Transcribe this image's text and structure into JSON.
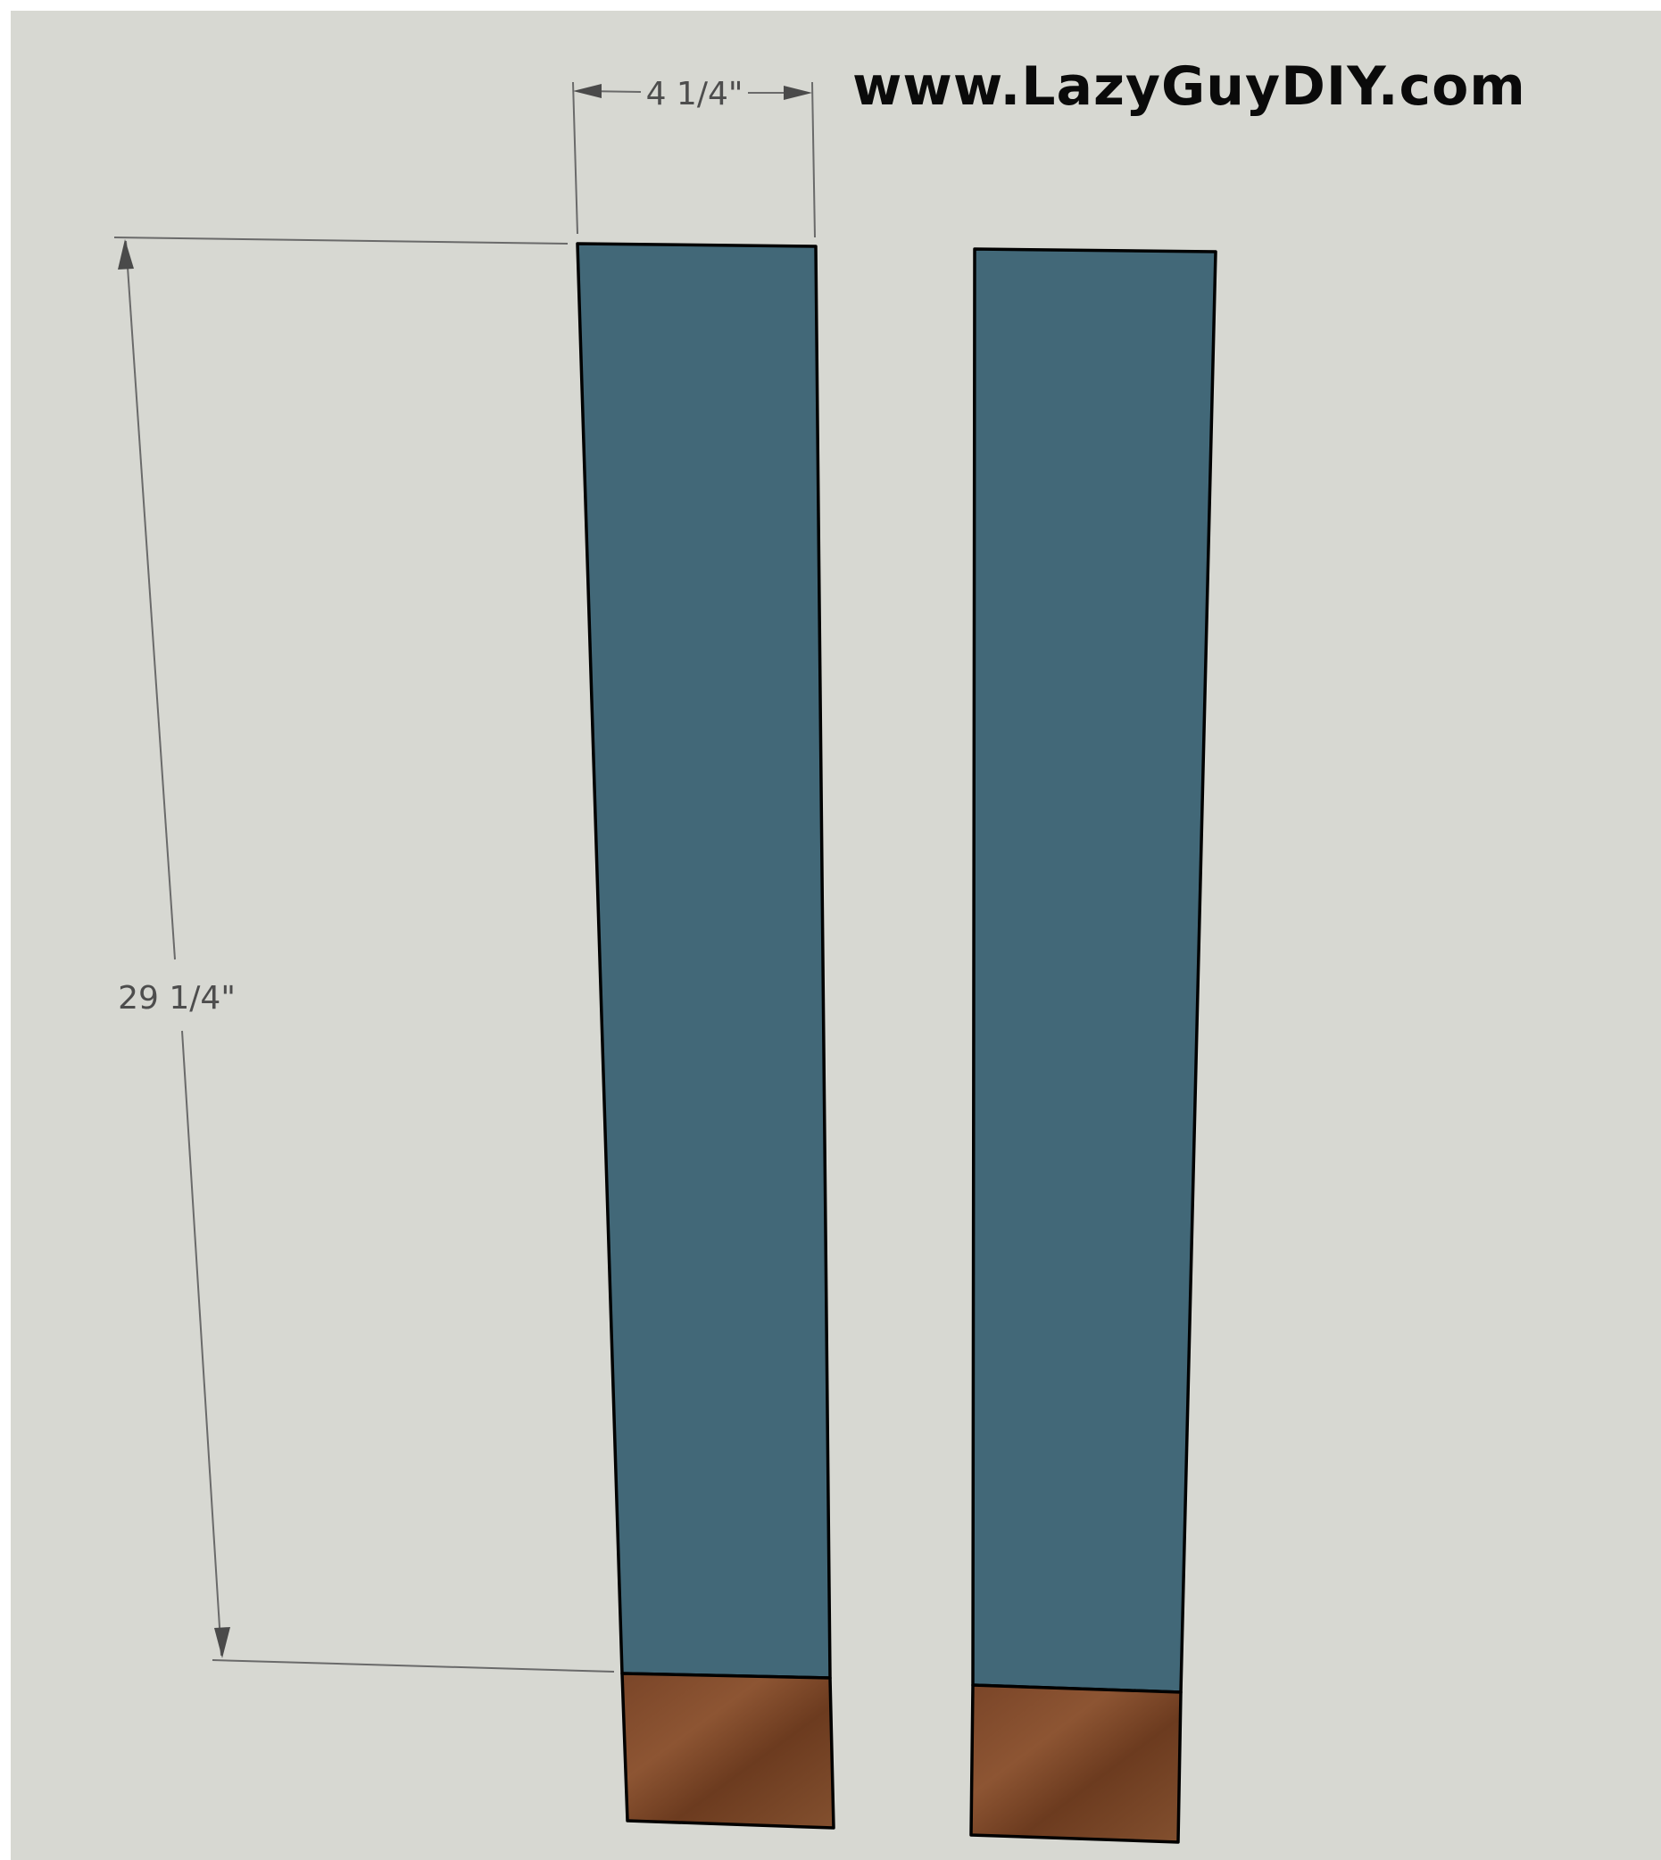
{
  "watermark": "www.LazyGuyDIY.com",
  "dimensions": {
    "width_label": "4 1/4\"",
    "height_label": "29 1/4\""
  },
  "colors": {
    "background": "#d7d8d2",
    "board_face": "#426878",
    "board_end": "#6b3d22",
    "board_end_light": "#8a5233",
    "outline": "#000000",
    "dimension_line": "#6a6a6a"
  }
}
